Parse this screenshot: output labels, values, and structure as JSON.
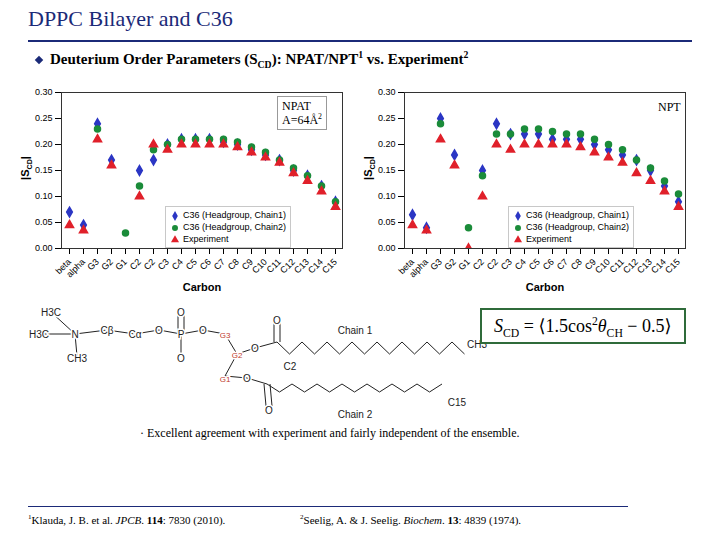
{
  "slide": {
    "title": [
      {
        "t": "DPPC Bilayer and C36"
      }
    ],
    "bullet": [
      {
        "t": "Deuterium Order Parameters (S",
        "bold": true
      },
      {
        "t": "CD",
        "bold": true,
        "sub": true
      },
      {
        "t": "): NPAT/NPT",
        "bold": true
      },
      {
        "t": "1",
        "bold": true,
        "sup": true
      },
      {
        "t": " vs. Experiment",
        "bold": true
      },
      {
        "t": "2",
        "bold": true,
        "sup": true
      }
    ],
    "formula": [
      {
        "t": "S",
        "italic": true
      },
      {
        "t": "CD",
        "sub": true
      },
      {
        "t": " = ⟨1.5cos"
      },
      {
        "t": "2",
        "sup": true
      },
      {
        "t": "θ",
        "italic": true
      },
      {
        "t": "CH",
        "sub": true
      },
      {
        "t": " − 0.5⟩"
      }
    ],
    "conclusion": [
      {
        "t": "· Excellent agreement with experiment and fairly independent of the ensemble."
      }
    ],
    "references": [
      [
        {
          "t": "1",
          "sup": true
        },
        {
          "t": "Klauda, J. B. et al. "
        },
        {
          "t": "JPCB",
          "italic": true
        },
        {
          "t": ". "
        },
        {
          "t": "114",
          "bold": true
        },
        {
          "t": ": 7830 (2010)."
        }
      ],
      [
        {
          "t": "2",
          "sup": true
        },
        {
          "t": "Seelig, A. & J. Seelig. "
        },
        {
          "t": "Biochem",
          "italic": true
        },
        {
          "t": ". "
        },
        {
          "t": "13",
          "bold": true
        },
        {
          "t": ": 4839 (1974)."
        }
      ]
    ],
    "molecule": {
      "labels": [
        "H3C",
        "H3C",
        "N",
        "CH3",
        "Cβ",
        "Cα",
        "O",
        "P",
        "O",
        "O",
        "O",
        "G3",
        "G2",
        "G1",
        "O",
        "O",
        "C2",
        "CH3",
        "O",
        "O",
        "C15",
        "Chain 1",
        "Chain 2"
      ]
    }
  },
  "chart_data": [
    {
      "type": "scatter",
      "categories": [
        "beta",
        "alpha",
        "G3",
        "G2",
        "G1",
        "C2",
        "C2",
        "C3",
        "C4",
        "C5",
        "C6",
        "C7",
        "C8",
        "C9",
        "C10",
        "C11",
        "C12",
        "C13",
        "C14",
        "C15"
      ],
      "xlabel": "Carbon",
      "ylabel": [
        {
          "t": "|S"
        },
        {
          "t": "CD",
          "sub": true
        },
        {
          "t": "|"
        }
      ],
      "ylim": [
        0,
        0.3
      ],
      "yticks": [
        {
          "value": 0,
          "label": "0.00"
        },
        {
          "value": 0.05,
          "label": "0.05"
        },
        {
          "value": 0.1,
          "label": "0.10"
        },
        {
          "value": 0.15,
          "label": "0.15"
        },
        {
          "value": 0.2,
          "label": "0.20"
        },
        {
          "value": 0.25,
          "label": "0.25"
        },
        {
          "value": 0.3,
          "label": "0.30"
        }
      ],
      "grid": false,
      "legend": "bottom",
      "annotation": [
        [
          {
            "t": "NPAT"
          }
        ],
        [
          {
            "t": "A=64Å"
          },
          {
            "t": "2",
            "sup": true
          }
        ]
      ],
      "series": [
        {
          "name": "C36 (Headgroup, Chain1)",
          "color": "#2b36c4",
          "marker": "diamond",
          "values": [
            0.07,
            0.045,
            0.24,
            0.17,
            null,
            0.15,
            0.17,
            0.2,
            0.21,
            0.21,
            0.21,
            0.205,
            0.2,
            0.19,
            0.18,
            0.17,
            0.15,
            0.14,
            0.12,
            0.09
          ]
        },
        {
          "name": "C36 (Headgroup, Chain2)",
          "color": "#1b8c3a",
          "marker": "circle",
          "values": [
            null,
            null,
            0.23,
            null,
            0.03,
            0.12,
            0.19,
            0.2,
            0.21,
            0.21,
            0.21,
            0.21,
            0.205,
            0.195,
            0.185,
            0.17,
            0.155,
            0.14,
            0.12,
            0.09
          ]
        },
        {
          "name": "Experiment",
          "color": "#e0202a",
          "marker": "triangle",
          "values": [
            0.045,
            0.035,
            0.21,
            0.16,
            null,
            0.1,
            0.2,
            0.19,
            0.2,
            0.2,
            0.2,
            0.2,
            0.195,
            0.185,
            0.175,
            0.165,
            0.145,
            0.13,
            0.11,
            0.08
          ]
        }
      ]
    },
    {
      "type": "scatter",
      "categories": [
        "beta",
        "alpha",
        "G3",
        "G2",
        "G1",
        "C2",
        "C2",
        "C3",
        "C4",
        "C5",
        "C6",
        "C7",
        "C8",
        "C9",
        "C10",
        "C11",
        "C12",
        "C13",
        "C14",
        "C15"
      ],
      "xlabel": "Carbon",
      "ylabel": [
        {
          "t": "|S"
        },
        {
          "t": "CD",
          "sub": true
        },
        {
          "t": "|"
        }
      ],
      "ylim": [
        0,
        0.3
      ],
      "yticks": [
        {
          "value": 0,
          "label": "0.00"
        },
        {
          "value": 0.05,
          "label": "0.05"
        },
        {
          "value": 0.1,
          "label": "0.10"
        },
        {
          "value": 0.15,
          "label": "0.15"
        },
        {
          "value": 0.2,
          "label": "0.20"
        },
        {
          "value": 0.25,
          "label": "0.25"
        },
        {
          "value": 0.3,
          "label": "0.30"
        }
      ],
      "grid": false,
      "legend": "bottom",
      "annotation": [
        [
          {
            "t": "NPT"
          }
        ]
      ],
      "series": [
        {
          "name": "C36 (Headgroup, Chain1)",
          "color": "#2b36c4",
          "marker": "diamond",
          "values": [
            0.065,
            0.04,
            0.25,
            0.18,
            null,
            0.15,
            0.24,
            0.22,
            0.22,
            0.22,
            0.21,
            0.21,
            0.21,
            0.2,
            0.19,
            0.18,
            0.17,
            0.15,
            0.12,
            0.09
          ]
        },
        {
          "name": "C36 (Headgroup, Chain2)",
          "color": "#1b8c3a",
          "marker": "circle",
          "values": [
            null,
            null,
            0.24,
            null,
            0.04,
            0.14,
            0.22,
            0.22,
            0.23,
            0.23,
            0.225,
            0.22,
            0.22,
            0.21,
            0.2,
            0.19,
            0.17,
            0.155,
            0.13,
            0.105
          ]
        },
        {
          "name": "Experiment",
          "color": "#e0202a",
          "marker": "triangle",
          "values": [
            0.045,
            0.035,
            0.21,
            0.16,
            0,
            0.1,
            0.2,
            0.19,
            0.2,
            0.2,
            0.2,
            0.2,
            0.195,
            0.185,
            0.175,
            0.165,
            0.145,
            0.13,
            0.11,
            0.08
          ]
        }
      ]
    }
  ]
}
